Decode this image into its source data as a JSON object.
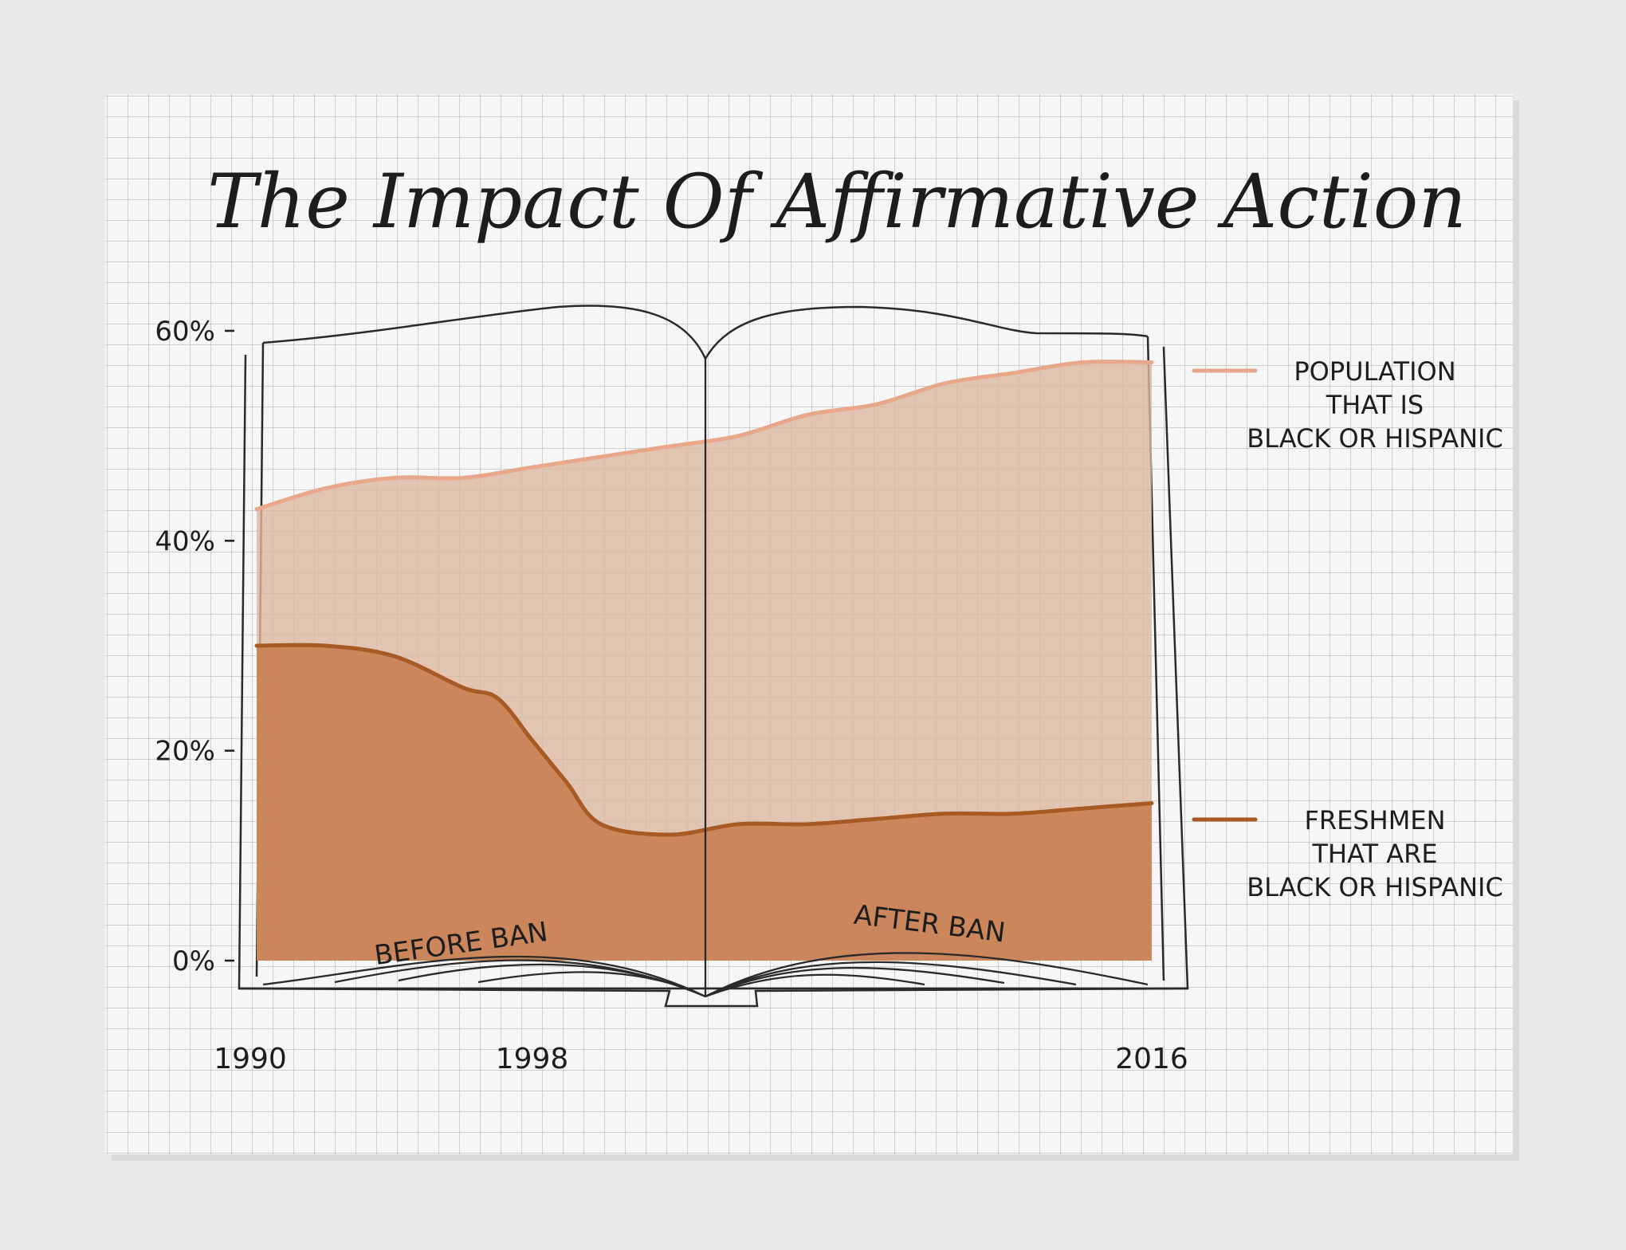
{
  "chart_data": {
    "type": "area",
    "title": "The Impact Of Affirmative Action",
    "x_tick_labels": [
      "1990",
      "1998",
      "2016"
    ],
    "y_tick_labels": [
      "0%",
      "20%",
      "40%",
      "60%"
    ],
    "ylim": [
      0,
      60
    ],
    "xlim": [
      1990,
      2016
    ],
    "grid": true,
    "legend_placement": "right",
    "series": [
      {
        "name": "POPULATION THAT IS BLACK OR HISPANIC",
        "legend_lines": [
          "POPULATION",
          "THAT IS",
          "BLACK OR HISPANIC"
        ],
        "color": "#e8a78a",
        "fill": "#dcb8a0",
        "x": [
          1990,
          1992,
          1994,
          1996,
          1998,
          2000,
          2002,
          2004,
          2006,
          2008,
          2010,
          2012,
          2014,
          2016
        ],
        "values": [
          43,
          45,
          46,
          46,
          47,
          48,
          49,
          50,
          52,
          53,
          55,
          56,
          57,
          57
        ]
      },
      {
        "name": "FRESHMEN THAT ARE BLACK OR HISPANIC",
        "legend_lines": [
          "FRESHMEN",
          "THAT ARE",
          "BLACK OR HISPANIC"
        ],
        "color": "#a85a24",
        "fill": "#c98456",
        "x": [
          1990,
          1992,
          1994,
          1996,
          1997,
          1998,
          1999,
          2000,
          2002,
          2004,
          2006,
          2008,
          2010,
          2012,
          2014,
          2016
        ],
        "values": [
          30,
          30,
          29,
          26,
          25,
          21,
          17,
          13,
          12,
          13,
          13,
          13.5,
          14,
          14,
          14.5,
          15
        ]
      }
    ],
    "annotations": [
      "BEFORE BAN",
      "AFTER BAN"
    ]
  }
}
